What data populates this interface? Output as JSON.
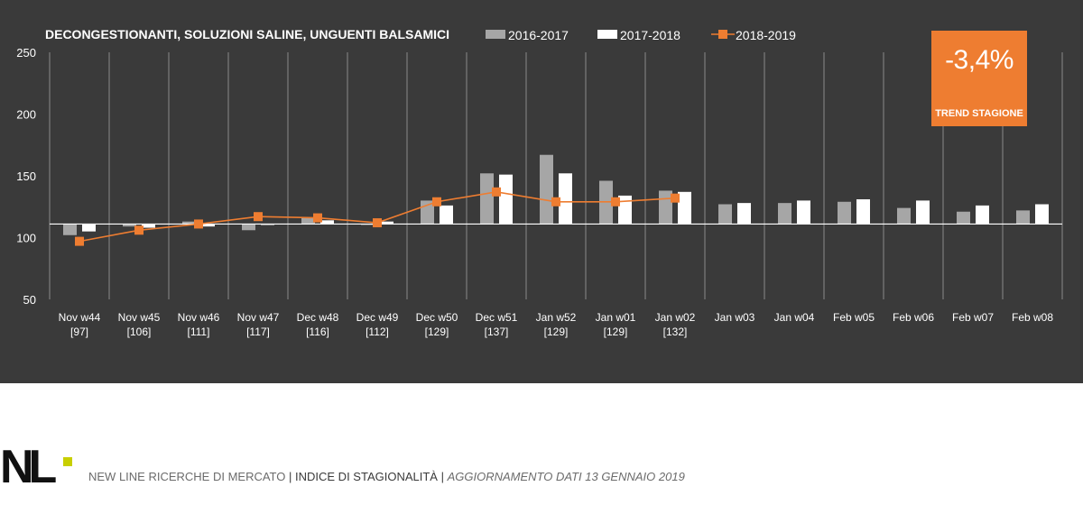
{
  "chart_data": {
    "type": "bar",
    "title": "DECONGESTIONANTI, SOLUZIONI SALINE, UNGUENTI BALSAMICI",
    "categories": [
      "Nov w44",
      "Nov w45",
      "Nov w46",
      "Nov w47",
      "Dec w48",
      "Dec w49",
      "Dec w50",
      "Dec w51",
      "Jan w52",
      "Jan w01",
      "Jan w02",
      "Jan w03",
      "Jan w04",
      "Feb w05",
      "Feb w06",
      "Feb w07",
      "Feb w08"
    ],
    "category_sublabels": [
      "[97]",
      "[106]",
      "[111]",
      "[117]",
      "[116]",
      "[112]",
      "[129]",
      "[137]",
      "[129]",
      "[129]",
      "[132]",
      "",
      "",
      "",
      "",
      "",
      ""
    ],
    "baseline": 111,
    "ylim": [
      50,
      250
    ],
    "yticks": [
      50,
      100,
      150,
      200,
      250
    ],
    "grid": "vertical separators between categories",
    "legend_position": "top",
    "series": [
      {
        "name": "2016-2017",
        "kind": "bar",
        "color": "#a6a6a6",
        "values": [
          102,
          109,
          113,
          106,
          116,
          111,
          130,
          152,
          167,
          146,
          138,
          127,
          128,
          129,
          124,
          121,
          122
        ]
      },
      {
        "name": "2017-2018",
        "kind": "bar",
        "color": "#ffffff",
        "values": [
          105,
          108,
          109,
          111,
          114,
          113,
          126,
          151,
          152,
          134,
          137,
          128,
          130,
          131,
          130,
          126,
          127
        ]
      },
      {
        "name": "2018-2019",
        "kind": "line",
        "color": "#ee7d31",
        "values": [
          97,
          106,
          111,
          117,
          116,
          112,
          129,
          137,
          129,
          129,
          132,
          null,
          null,
          null,
          null,
          null,
          null
        ]
      }
    ]
  },
  "badge": {
    "value": "-3,4%",
    "label": "TREND STAGIONE"
  },
  "footer": {
    "logo": "NL",
    "company": "NEW LINE RICERCHE DI MERCATO",
    "separator": "|",
    "index_label": "INDICE DI STAGIONALITÀ",
    "update_label": "AGGIORNAMENTO DATI  13 GENNAIO 2019"
  },
  "colors": {
    "panel_bg": "#3a3a3a",
    "accent": "#ee7d31",
    "logo_green": "#c8cf00"
  }
}
